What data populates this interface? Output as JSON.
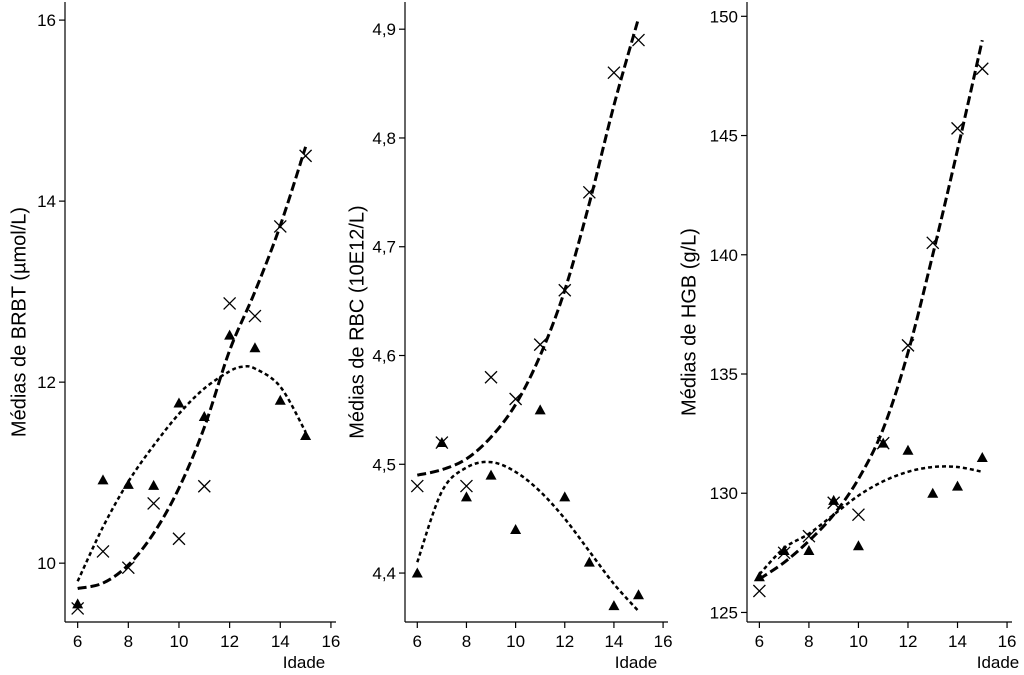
{
  "chart_data": [
    {
      "type": "scatter",
      "ylabel": "Médias de BRBT (µmol/L)",
      "xlabel": "Idade",
      "xlim": [
        5.5,
        16.2
      ],
      "ylim": [
        9.35,
        16.2
      ],
      "xticks": [
        6,
        8,
        10,
        12,
        14,
        16
      ],
      "xtick_labels": [
        "6",
        "8",
        "10",
        "12",
        "14",
        "16"
      ],
      "yticks": [
        10,
        12,
        14,
        16
      ],
      "ytick_labels": [
        "10",
        "12",
        "14",
        "16"
      ],
      "series": [
        {
          "marker": "x",
          "fit_style": "dashed",
          "x": [
            6,
            7,
            8,
            9,
            10,
            11,
            12,
            13,
            14,
            15
          ],
          "y": [
            9.5,
            10.13,
            9.95,
            10.66,
            10.27,
            10.85,
            12.87,
            12.73,
            13.72,
            14.5
          ],
          "fit_x": [
            6,
            7,
            8,
            9,
            10,
            11,
            12,
            13,
            14,
            15
          ],
          "fit_y": [
            9.72,
            9.78,
            9.98,
            10.33,
            10.83,
            11.5,
            12.35,
            13.0,
            13.73,
            14.6
          ]
        },
        {
          "marker": "triangle",
          "fit_style": "dotted",
          "x": [
            6,
            7,
            8,
            9,
            10,
            11,
            12,
            13,
            14,
            15
          ],
          "y": [
            9.55,
            10.92,
            10.87,
            10.86,
            11.77,
            11.62,
            12.52,
            12.38,
            11.8,
            11.41
          ],
          "fit_x": [
            6,
            7,
            8,
            9,
            10,
            11,
            12,
            12.5,
            13,
            14,
            15
          ],
          "fit_y": [
            9.8,
            10.4,
            10.9,
            11.3,
            11.65,
            11.93,
            12.12,
            12.17,
            12.15,
            11.95,
            11.45
          ]
        }
      ]
    },
    {
      "type": "scatter",
      "ylabel": "Médias de RBC (10E12/L)",
      "xlabel": "Idade",
      "xlim": [
        5.5,
        16.2
      ],
      "ylim": [
        4.355,
        4.925
      ],
      "xticks": [
        6,
        8,
        10,
        12,
        14,
        16
      ],
      "xtick_labels": [
        "6",
        "8",
        "10",
        "12",
        "14",
        "16"
      ],
      "yticks": [
        4.4,
        4.5,
        4.6,
        4.7,
        4.8,
        4.9
      ],
      "ytick_labels": [
        "4,4",
        "4,5",
        "4,6",
        "4,7",
        "4,8",
        "4,9"
      ],
      "series": [
        {
          "marker": "x",
          "fit_style": "dashed",
          "x": [
            6,
            7,
            8,
            9,
            10,
            11,
            12,
            13,
            14,
            15
          ],
          "y": [
            4.48,
            4.52,
            4.48,
            4.58,
            4.56,
            4.61,
            4.66,
            4.75,
            4.86,
            4.89
          ],
          "fit_x": [
            6,
            7,
            8,
            9,
            10,
            11,
            12,
            13,
            14,
            15
          ],
          "fit_y": [
            4.49,
            4.495,
            4.505,
            4.525,
            4.555,
            4.6,
            4.66,
            4.74,
            4.83,
            4.91
          ]
        },
        {
          "marker": "triangle",
          "fit_style": "dotted",
          "x": [
            6,
            7,
            8,
            9,
            10,
            11,
            12,
            13,
            14,
            15
          ],
          "y": [
            4.4,
            4.52,
            4.47,
            4.49,
            4.44,
            4.55,
            4.47,
            4.41,
            4.37,
            4.38
          ],
          "fit_x": [
            6,
            7,
            8,
            9,
            10,
            11,
            12,
            13,
            14,
            15
          ],
          "fit_y": [
            4.41,
            4.475,
            4.497,
            4.502,
            4.493,
            4.475,
            4.45,
            4.42,
            4.39,
            4.365
          ]
        }
      ]
    },
    {
      "type": "scatter",
      "ylabel": "Médias de HGB (g/L)",
      "xlabel": "Idade",
      "xlim": [
        5.5,
        16.2
      ],
      "ylim": [
        124.6,
        150.6
      ],
      "xticks": [
        6,
        8,
        10,
        12,
        14,
        16
      ],
      "xtick_labels": [
        "6",
        "8",
        "10",
        "12",
        "14",
        "16"
      ],
      "yticks": [
        125,
        130,
        135,
        140,
        145,
        150
      ],
      "ytick_labels": [
        "125",
        "130",
        "135",
        "140",
        "145",
        "150"
      ],
      "series": [
        {
          "marker": "x",
          "fit_style": "dashed",
          "x": [
            6,
            7,
            8,
            9,
            10,
            11,
            12,
            13,
            14,
            15
          ],
          "y": [
            125.9,
            127.5,
            128.2,
            129.6,
            129.1,
            132.1,
            136.2,
            140.5,
            145.3,
            147.8
          ],
          "fit_x": [
            6,
            7,
            8,
            9,
            10,
            11,
            12,
            13,
            14,
            15
          ],
          "fit_y": [
            126.4,
            127.1,
            128.0,
            129.1,
            130.6,
            132.7,
            135.9,
            140.0,
            144.4,
            149.0
          ]
        },
        {
          "marker": "triangle",
          "fit_style": "dotted",
          "x": [
            6,
            7,
            8,
            9,
            10,
            11,
            12,
            13,
            14,
            15
          ],
          "y": [
            126.5,
            127.6,
            127.6,
            129.7,
            127.8,
            132.1,
            131.8,
            130.0,
            130.3,
            131.5
          ],
          "fit_x": [
            6,
            7,
            8,
            9,
            10,
            11,
            12,
            13,
            14,
            15
          ],
          "fit_y": [
            126.6,
            127.7,
            128.3,
            129.1,
            129.9,
            130.5,
            130.9,
            131.1,
            131.1,
            130.9
          ]
        }
      ]
    }
  ]
}
